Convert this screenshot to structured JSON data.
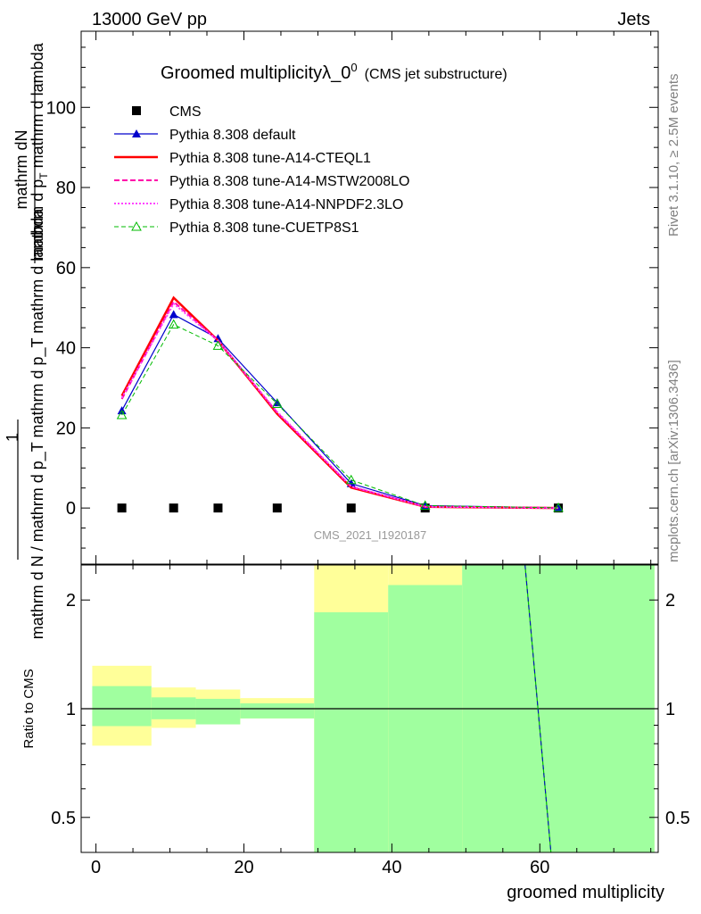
{
  "header": {
    "left": "13000 GeV pp",
    "right": "Jets"
  },
  "side_labels": {
    "rivet": "Rivet 3.1.10, ≥ 2.5M events",
    "mcplots": "mcplots.cern.ch [arXiv:1306.3436]"
  },
  "colors": {
    "cms": "#000000",
    "default": "#0000cc",
    "cteql1": "#ff0000",
    "mstw": "#ff00aa",
    "nnpdf": "#ff44ff",
    "cuetp8s1": "#00bb00",
    "band_inner": "#a0ff9f",
    "band_outer": "#ffff99"
  },
  "chart_data": [
    {
      "type": "line",
      "title": "Groomed multiplicityλ_0",
      "title_sup": "0",
      "title_suffix": "(CMS jet substructure)",
      "watermark": "CMS_2021_I1920187",
      "ylabel_top": "mathrm dN",
      "ylabel_bottom": "mathrm d N / mathrm d p_T mathrm d p_T mathrm d lambda",
      "ylabel_one": "1",
      "ylim": [
        -14,
        119
      ],
      "xlim": [
        -2,
        76
      ],
      "yticks": [
        0,
        20,
        40,
        60,
        80,
        100
      ],
      "legend_position": "top-left",
      "series": [
        {
          "key": "cms",
          "name": "CMS",
          "style": "points",
          "x": [
            3.5,
            10.5,
            16.5,
            24.5,
            34.5,
            44.5,
            62.5
          ],
          "y": [
            0,
            0,
            0,
            0,
            0,
            0,
            0
          ]
        },
        {
          "key": "default",
          "name": "Pythia 8.308 default",
          "style": "solid-filled-triangle",
          "x": [
            3.5,
            10.5,
            16.5,
            24.5,
            34.5,
            44.5,
            62.5
          ],
          "y": [
            24.3,
            48.3,
            42.3,
            26.3,
            6.1,
            0.6,
            0.05
          ]
        },
        {
          "key": "cteql1",
          "name": "Pythia 8.308 tune-A14-CTEQL1",
          "style": "solid-thick",
          "x": [
            3.5,
            10.5,
            16.5,
            24.5,
            34.5,
            44.5,
            62.5
          ],
          "y": [
            28.0,
            52.5,
            41.8,
            23.5,
            5.1,
            0.3,
            0.02
          ]
        },
        {
          "key": "mstw",
          "name": "Pythia 8.308 tune-A14-MSTW2008LO",
          "style": "dashed",
          "x": [
            3.5,
            10.5,
            16.5,
            24.5,
            34.5,
            44.5,
            62.5
          ],
          "y": [
            27.2,
            51.5,
            41.8,
            23.8,
            5.3,
            0.35,
            0.02
          ]
        },
        {
          "key": "nnpdf",
          "name": "Pythia 8.308 tune-A14-NNPDF2.3LO",
          "style": "dotted",
          "x": [
            3.5,
            10.5,
            16.5,
            24.5,
            34.5,
            44.5,
            62.5
          ],
          "y": [
            27.5,
            51.0,
            41.8,
            24.0,
            5.4,
            0.35,
            0.02
          ]
        },
        {
          "key": "cuetp8s1",
          "name": "Pythia 8.308 tune-CUETP8S1",
          "style": "dashed-open-triangle",
          "x": [
            3.5,
            10.5,
            16.5,
            24.5,
            34.5,
            44.5,
            62.5
          ],
          "y": [
            23.2,
            45.8,
            40.5,
            26.0,
            7.0,
            0.6,
            0.05
          ]
        }
      ]
    },
    {
      "type": "area",
      "ylabel": "Ratio to CMS",
      "xlabel": "groomed multiplicity",
      "xlim": [
        -2,
        76
      ],
      "ylim": [
        0.4,
        2.5
      ],
      "log_y": true,
      "xticks": [
        0,
        20,
        40,
        60
      ],
      "yticks": [
        0.5,
        1,
        2
      ],
      "ytick_labels": [
        "0.5",
        "1",
        "2"
      ],
      "reference": 1,
      "bins": [
        {
          "lo": -0.5,
          "hi": 7.5,
          "inner": [
            0.895,
            1.155
          ],
          "outer": [
            0.79,
            1.315
          ]
        },
        {
          "lo": 7.5,
          "hi": 13.5,
          "inner": [
            0.935,
            1.075
          ],
          "outer": [
            0.885,
            1.145
          ]
        },
        {
          "lo": 13.5,
          "hi": 19.5,
          "inner": [
            0.905,
            1.065
          ],
          "outer": [
            0.905,
            1.13
          ]
        },
        {
          "lo": 19.5,
          "hi": 29.5,
          "inner": [
            0.94,
            1.035
          ],
          "outer": [
            0.94,
            1.07
          ]
        },
        {
          "lo": 29.5,
          "hi": 39.5,
          "inner": [
            0.4,
            1.85
          ],
          "outer": [
            0.4,
            2.5
          ]
        },
        {
          "lo": 39.5,
          "hi": 49.5,
          "inner": [
            0.4,
            2.2
          ],
          "outer": [
            0.4,
            2.5
          ]
        },
        {
          "lo": 49.5,
          "hi": 75.5,
          "inner": [
            0.4,
            2.5
          ],
          "outer": [
            0.4,
            2.5
          ]
        }
      ],
      "ratio_line": {
        "x": [
          58.0,
          61.5
        ],
        "y": [
          2.5,
          0.4
        ]
      }
    }
  ]
}
